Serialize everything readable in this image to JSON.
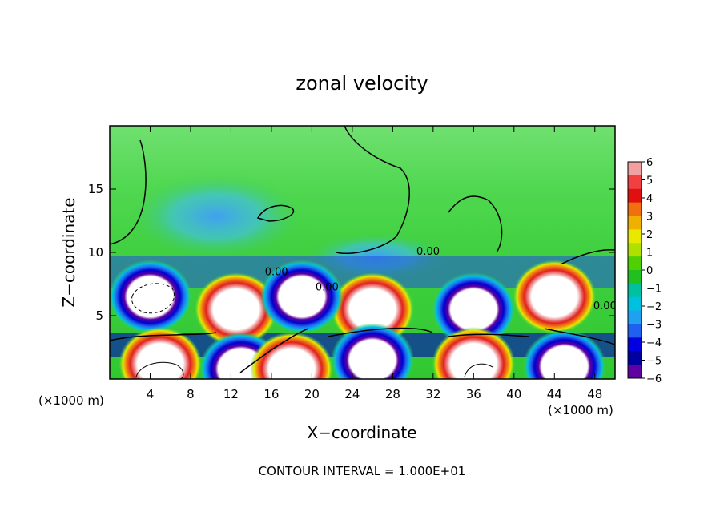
{
  "chart_data": {
    "type": "heatmap",
    "title": "zonal velocity",
    "xlabel": "X−coordinate",
    "ylabel": "Z−coordinate",
    "x_unit_left": "(×1000 m)",
    "x_unit_right": "(×1000 m)",
    "xlim": [
      0,
      50
    ],
    "ylim": [
      0,
      20
    ],
    "x_ticks": [
      4,
      8,
      12,
      16,
      20,
      24,
      28,
      32,
      36,
      40,
      44,
      48
    ],
    "y_ticks": [
      5,
      10,
      15
    ],
    "contour_labels": [
      {
        "x": 16.5,
        "y": 8.2,
        "text": "0.00"
      },
      {
        "x": 21.5,
        "y": 7.0,
        "text": "0.00"
      },
      {
        "x": 31.5,
        "y": 9.8,
        "text": "0.00"
      },
      {
        "x": 49.0,
        "y": 5.5,
        "text": "0.00"
      }
    ],
    "footer": "CONTOUR INTERVAL = 1.000E+01",
    "colorbar": {
      "labels": [
        "6",
        "5",
        "4",
        "3",
        "2",
        "1",
        "0",
        "−1",
        "−2",
        "−3",
        "−4",
        "−5",
        "−6"
      ],
      "colors": [
        "#f0a0a0",
        "#f04040",
        "#e01010",
        "#f07010",
        "#f0b000",
        "#e8e800",
        "#b0e000",
        "#50d000",
        "#20c020",
        "#00c0a0",
        "#00c0e0",
        "#20a0f0",
        "#2060f0",
        "#0000e0",
        "#0000a0",
        "#6000a0"
      ]
    },
    "features": [
      {
        "kind": "max",
        "x": 26,
        "y": 5.5
      },
      {
        "kind": "max",
        "x": 12.5,
        "y": 5.5
      },
      {
        "kind": "max",
        "x": 44,
        "y": 6.5
      },
      {
        "kind": "min",
        "x": 4,
        "y": 6.5
      },
      {
        "kind": "min",
        "x": 36,
        "y": 5.5
      },
      {
        "kind": "min",
        "x": 19,
        "y": 6.5
      },
      {
        "kind": "max",
        "x": 5,
        "y": 1.2
      },
      {
        "kind": "max",
        "x": 36,
        "y": 1.2
      },
      {
        "kind": "min",
        "x": 26,
        "y": 1.5
      },
      {
        "kind": "min",
        "x": 45,
        "y": 1.0
      },
      {
        "kind": "min",
        "x": 13,
        "y": 0.8
      },
      {
        "kind": "max",
        "x": 18,
        "y": 0.8
      }
    ]
  }
}
